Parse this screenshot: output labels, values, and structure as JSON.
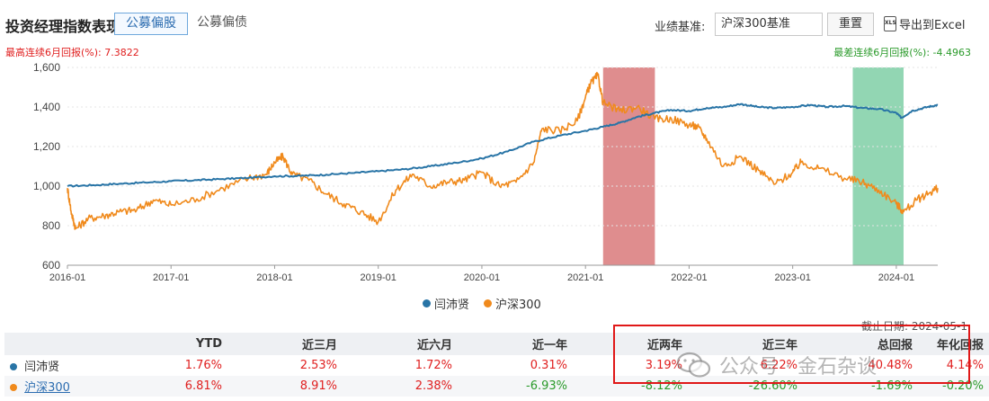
{
  "header": {
    "title": "投资经理指数表现",
    "tabs": [
      {
        "label": "公募偏股",
        "active": true
      },
      {
        "label": "公募偏债",
        "active": false
      }
    ],
    "benchmark_label": "业绩基准:",
    "benchmark_value": "沪深300基准",
    "reset_label": "重置",
    "export_label": "导出到Excel",
    "export_icon": "XLS"
  },
  "annotations": {
    "best": "最高连续6月回报(%): 7.3822",
    "worst": "最差连续6月回报(%): -4.4963"
  },
  "colors": {
    "manager": "#2874a6",
    "index": "#f08a1c",
    "best_band": "#d9797a",
    "worst_band": "#7fcfa6",
    "positive": "#e02020",
    "negative": "#2a9a2a"
  },
  "chart_data": {
    "type": "line",
    "x_ticks": [
      "2016-01",
      "2017-01",
      "2018-01",
      "2019-01",
      "2020-01",
      "2021-01",
      "2022-01",
      "2023-01",
      "2024-01"
    ],
    "y_ticks": [
      "600",
      "800",
      "1,000",
      "1,200",
      "1,400",
      "1,600"
    ],
    "ylim": [
      600,
      1600
    ],
    "xlim": [
      2016.0,
      2024.4
    ],
    "highlight_best": [
      2021.17,
      2021.67
    ],
    "highlight_worst": [
      2023.58,
      2024.07
    ],
    "series": [
      {
        "name": "闫沛贤",
        "points": [
          [
            2016.0,
            1000
          ],
          [
            2016.25,
            1005
          ],
          [
            2016.5,
            1012
          ],
          [
            2016.75,
            1018
          ],
          [
            2017.0,
            1025
          ],
          [
            2017.25,
            1030
          ],
          [
            2017.5,
            1036
          ],
          [
            2017.75,
            1042
          ],
          [
            2018.0,
            1050
          ],
          [
            2018.25,
            1052
          ],
          [
            2018.5,
            1058
          ],
          [
            2018.75,
            1066
          ],
          [
            2019.0,
            1075
          ],
          [
            2019.25,
            1085
          ],
          [
            2019.5,
            1100
          ],
          [
            2019.75,
            1118
          ],
          [
            2020.0,
            1140
          ],
          [
            2020.25,
            1175
          ],
          [
            2020.5,
            1225
          ],
          [
            2020.75,
            1255
          ],
          [
            2021.0,
            1280
          ],
          [
            2021.17,
            1300
          ],
          [
            2021.33,
            1320
          ],
          [
            2021.5,
            1350
          ],
          [
            2021.67,
            1370
          ],
          [
            2021.83,
            1385
          ],
          [
            2022.0,
            1380
          ],
          [
            2022.17,
            1395
          ],
          [
            2022.33,
            1400
          ],
          [
            2022.5,
            1415
          ],
          [
            2022.67,
            1400
          ],
          [
            2022.83,
            1395
          ],
          [
            2023.0,
            1400
          ],
          [
            2023.17,
            1410
          ],
          [
            2023.33,
            1400
          ],
          [
            2023.5,
            1405
          ],
          [
            2023.67,
            1395
          ],
          [
            2023.83,
            1390
          ],
          [
            2024.0,
            1370
          ],
          [
            2024.05,
            1345
          ],
          [
            2024.15,
            1380
          ],
          [
            2024.3,
            1400
          ],
          [
            2024.4,
            1410
          ]
        ]
      },
      {
        "name": "沪深300",
        "points": [
          [
            2016.0,
            990
          ],
          [
            2016.04,
            860
          ],
          [
            2016.08,
            785
          ],
          [
            2016.2,
            835
          ],
          [
            2016.35,
            850
          ],
          [
            2016.5,
            870
          ],
          [
            2016.67,
            880
          ],
          [
            2016.83,
            930
          ],
          [
            2017.0,
            905
          ],
          [
            2017.25,
            935
          ],
          [
            2017.5,
            990
          ],
          [
            2017.75,
            1040
          ],
          [
            2017.92,
            1060
          ],
          [
            2018.0,
            1120
          ],
          [
            2018.08,
            1150
          ],
          [
            2018.17,
            1060
          ],
          [
            2018.33,
            1030
          ],
          [
            2018.5,
            960
          ],
          [
            2018.67,
            910
          ],
          [
            2018.83,
            870
          ],
          [
            2019.0,
            820
          ],
          [
            2019.17,
            980
          ],
          [
            2019.33,
            1060
          ],
          [
            2019.5,
            1000
          ],
          [
            2019.67,
            1020
          ],
          [
            2019.83,
            1030
          ],
          [
            2020.0,
            1070
          ],
          [
            2020.17,
            1000
          ],
          [
            2020.33,
            1020
          ],
          [
            2020.5,
            1120
          ],
          [
            2020.58,
            1290
          ],
          [
            2020.75,
            1280
          ],
          [
            2020.92,
            1330
          ],
          [
            2021.0,
            1450
          ],
          [
            2021.05,
            1520
          ],
          [
            2021.12,
            1560
          ],
          [
            2021.17,
            1420
          ],
          [
            2021.33,
            1380
          ],
          [
            2021.5,
            1400
          ],
          [
            2021.67,
            1340
          ],
          [
            2021.83,
            1340
          ],
          [
            2022.0,
            1310
          ],
          [
            2022.08,
            1300
          ],
          [
            2022.17,
            1240
          ],
          [
            2022.33,
            1100
          ],
          [
            2022.5,
            1150
          ],
          [
            2022.67,
            1080
          ],
          [
            2022.83,
            1010
          ],
          [
            2023.0,
            1070
          ],
          [
            2023.08,
            1120
          ],
          [
            2023.25,
            1090
          ],
          [
            2023.5,
            1040
          ],
          [
            2023.67,
            1020
          ],
          [
            2023.83,
            980
          ],
          [
            2024.0,
            910
          ],
          [
            2024.07,
            870
          ],
          [
            2024.2,
            930
          ],
          [
            2024.33,
            970
          ],
          [
            2024.4,
            990
          ]
        ]
      }
    ]
  },
  "legend": [
    {
      "name": "闫沛贤",
      "color": "#2874a6"
    },
    {
      "name": "沪深300",
      "color": "#f08a1c"
    }
  ],
  "asof": "截止日期: 2024-05-1",
  "table": {
    "headers": [
      "",
      "YTD",
      "近三月",
      "近六月",
      "近一年",
      "近两年",
      "近三年",
      "总回报",
      "年化回报"
    ],
    "rows": [
      {
        "name": "闫沛贤",
        "color": "#2874a6",
        "values": [
          "1.76%",
          "2.53%",
          "1.72%",
          "0.31%",
          "3.19%",
          "6.22%",
          "40.48%",
          "4.14%"
        ]
      },
      {
        "name": "沪深300",
        "color": "#f08a1c",
        "values": [
          "6.81%",
          "8.91%",
          "2.38%",
          "-6.93%",
          "-8.12%",
          "-26.60%",
          "-1.69%",
          "-0.20%"
        ]
      }
    ]
  },
  "watermark": "公众号 · 金石杂谈"
}
